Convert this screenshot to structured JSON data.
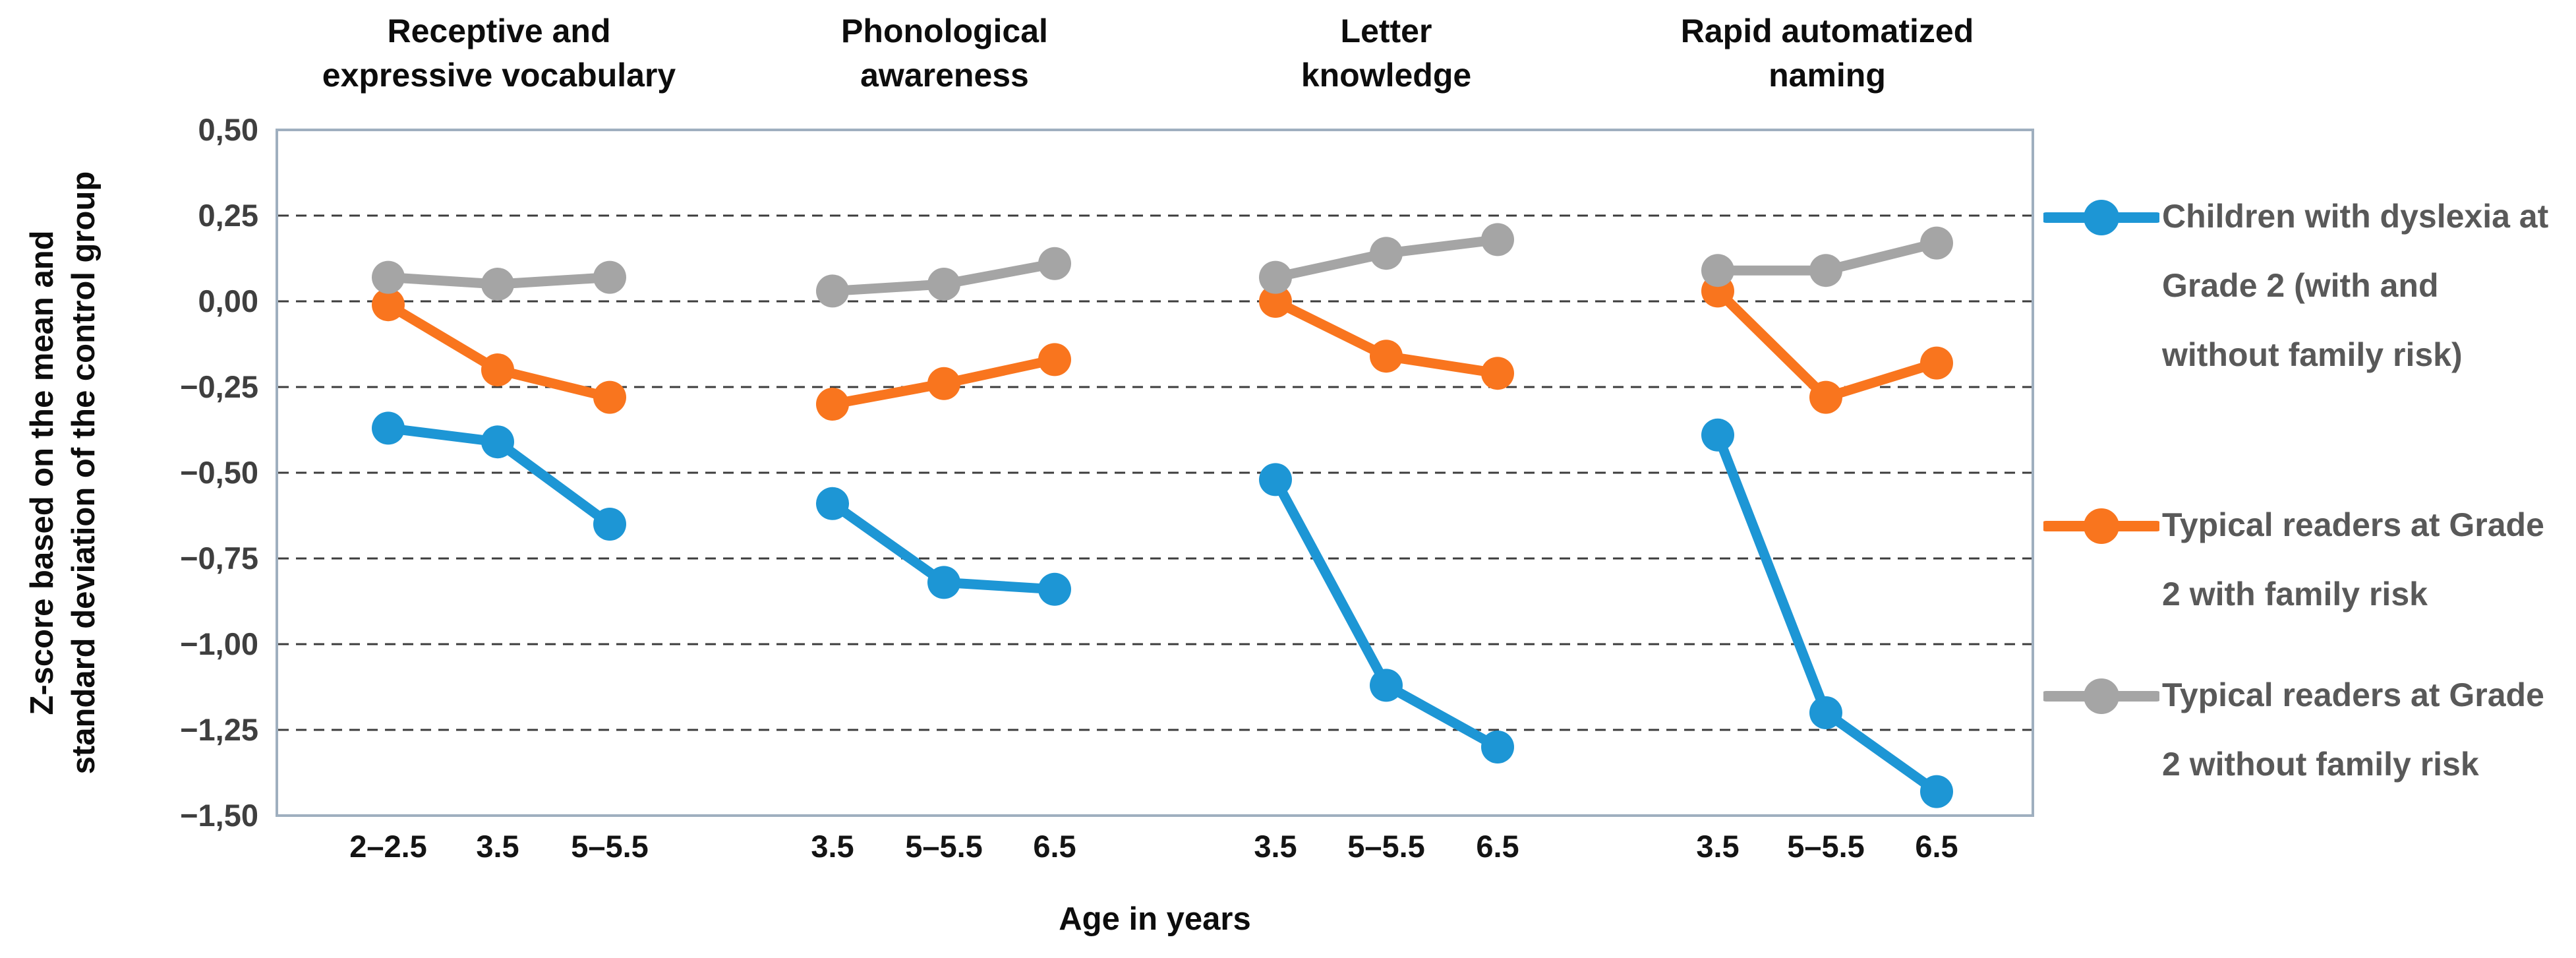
{
  "chart_data": {
    "type": "line",
    "grid": "horizontal-dashed",
    "legend_position": "right",
    "y_axis": {
      "title_lines": [
        "Z-score based on the mean and",
        "standard deviation of the control group"
      ],
      "ticks": [
        "0,50",
        "0,25",
        "0,00",
        "−0,25",
        "−0,50",
        "−0,75",
        "−1,00",
        "−1,25",
        "−1,50"
      ],
      "tick_values": [
        0.5,
        0.25,
        0.0,
        -0.25,
        -0.5,
        -0.75,
        -1.0,
        -1.25,
        -1.5
      ],
      "ylim": [
        -1.5,
        0.5
      ]
    },
    "x_axis": {
      "title": "Age in years"
    },
    "panels": [
      {
        "title_lines": [
          "Receptive and",
          "expressive vocabulary"
        ],
        "categories": [
          "2–2.5",
          "3.5",
          "5–5.5"
        ]
      },
      {
        "title_lines": [
          "Phonological",
          "awareness"
        ],
        "categories": [
          "3.5",
          "5–5.5",
          "6.5"
        ]
      },
      {
        "title_lines": [
          "Letter",
          "knowledge"
        ],
        "categories": [
          "3.5",
          "5–5.5",
          "6.5"
        ]
      },
      {
        "title_lines": [
          "Rapid automatized",
          "naming"
        ],
        "categories": [
          "3.5",
          "5–5.5",
          "6.5"
        ]
      }
    ],
    "series": [
      {
        "name": "Children with dyslexia at Grade 2 (with and without family risk)",
        "color": "#1D96D5",
        "values_by_panel": [
          [
            -0.37,
            -0.41,
            -0.65
          ],
          [
            -0.59,
            -0.82,
            -0.84
          ],
          [
            -0.52,
            -1.12,
            -1.3
          ],
          [
            -0.39,
            -1.2,
            -1.43
          ]
        ]
      },
      {
        "name": "Typical readers at Grade 2 with family risk",
        "color": "#F9751E",
        "values_by_panel": [
          [
            -0.01,
            -0.2,
            -0.28
          ],
          [
            -0.3,
            -0.24,
            -0.17
          ],
          [
            0.0,
            -0.16,
            -0.21
          ],
          [
            0.03,
            -0.28,
            -0.18
          ]
        ]
      },
      {
        "name": "Typical readers at Grade 2 without family risk",
        "color": "#A5A5A5",
        "values_by_panel": [
          [
            0.07,
            0.05,
            0.07
          ],
          [
            0.03,
            0.05,
            0.11
          ],
          [
            0.07,
            0.14,
            0.18
          ],
          [
            0.09,
            0.09,
            0.17
          ]
        ]
      }
    ],
    "legend": {
      "entries": [
        {
          "lines": [
            "Children with dyslexia at",
            "Grade 2 (with and",
            "without family risk)"
          ],
          "series_index": 0
        },
        {
          "lines": [
            "Typical readers at Grade",
            "2 with family risk"
          ],
          "series_index": 1
        },
        {
          "lines": [
            "Typical readers at Grade",
            "2 without family risk"
          ],
          "series_index": 2
        }
      ]
    },
    "colors": {
      "plot_border": "#9FAFBF",
      "gridline": "#3d3d3d",
      "y_tick_text": "#3f3f3f",
      "x_tick_text": "#141414",
      "legend_text": "#595959"
    }
  }
}
